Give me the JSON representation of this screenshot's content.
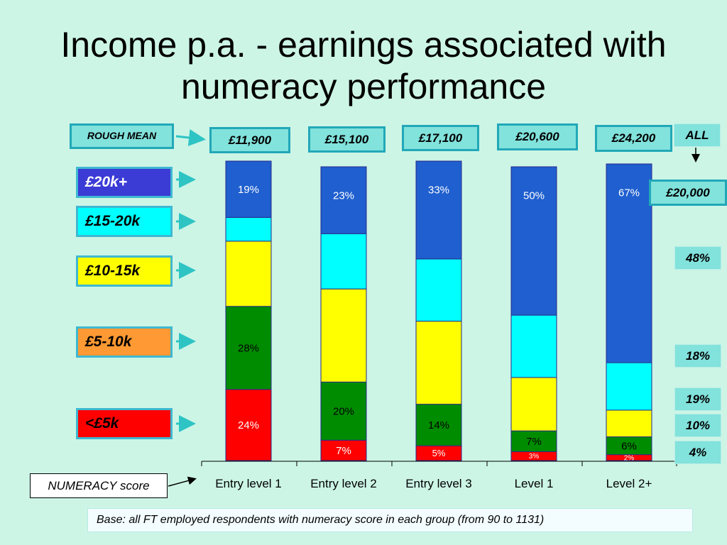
{
  "title": "Income p.a. - earnings associated with numeracy performance",
  "rough_mean_label": "ROUGH MEAN",
  "numeracy_label": "NUMERACY score",
  "base_note": "Base: all FT employed respondents with numeracy score in each group (from 90 to 1131)",
  "all": {
    "label": "ALL",
    "mean": "£20,000",
    "band_percentages": [
      "48%",
      "18%",
      "19%",
      "10%",
      "4%"
    ]
  },
  "bands": [
    {
      "label": "£20k+",
      "color": "#1f5fcf",
      "box_color": "#3b3bd6",
      "text_color": "#ffffff"
    },
    {
      "label": "£15-20k",
      "color": "#00ffff",
      "box_color": "#00ffff",
      "text_color": "#000000"
    },
    {
      "label": "£10-15k",
      "color": "#ffff00",
      "box_color": "#ffff00",
      "text_color": "#000000"
    },
    {
      "label": "£5-10k",
      "color": "#008c00",
      "box_color": "#ff9933",
      "text_color": "#000000"
    },
    {
      "label": "<£5k",
      "color": "#ff0000",
      "box_color": "#ff0000",
      "text_color": "#000000"
    }
  ],
  "colors": {
    "background": "#ccf5e6",
    "box_fill": "#82e2dc",
    "box_border": "#21a8b8",
    "arrow": "#2ec4c4"
  },
  "chart_data": {
    "type": "bar",
    "stacked": true,
    "normalized_percent": true,
    "xlabel": "NUMERACY score",
    "categories": [
      "Entry level 1",
      "Entry level 2",
      "Entry level 3",
      "Level 1",
      "Level 2+"
    ],
    "rough_means": [
      "£11,900",
      "£15,100",
      "£17,100",
      "£20,600",
      "£24,200"
    ],
    "series": [
      {
        "name": "<£5k",
        "values": [
          24,
          7,
          5,
          3,
          2
        ],
        "labels": [
          "24%",
          "7%",
          "5%",
          "3%",
          "2%"
        ]
      },
      {
        "name": "£5-10k",
        "values": [
          28,
          20,
          14,
          7,
          6
        ],
        "labels": [
          "28%",
          "20%",
          "14%",
          "7%",
          "6%"
        ]
      },
      {
        "name": "£10-15k",
        "values": [
          22,
          32,
          28,
          18,
          9
        ],
        "labels": [
          "",
          "",
          "",
          "",
          ""
        ]
      },
      {
        "name": "£15-20k",
        "values": [
          8,
          19,
          21,
          21,
          16
        ],
        "labels": [
          "",
          "",
          "",
          "",
          ""
        ]
      },
      {
        "name": "£20k+",
        "values": [
          19,
          23,
          33,
          50,
          67
        ],
        "labels": [
          "19%",
          "23%",
          "33%",
          "50%",
          "67%"
        ]
      }
    ]
  }
}
